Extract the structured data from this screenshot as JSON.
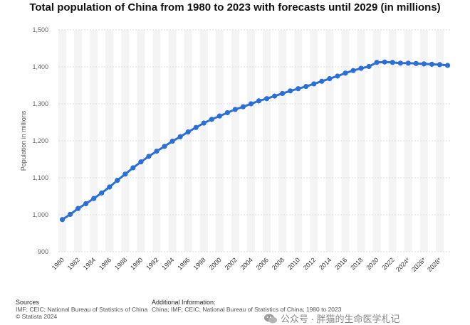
{
  "chart_data": {
    "type": "line",
    "title": "Total population of China from 1980 to 2023 with forecasts until 2029 (in millions)",
    "xlabel": "",
    "ylabel": "Population in millions",
    "ylim": [
      900,
      1500
    ],
    "yticks": [
      "900",
      "1,000",
      "1,100",
      "1,200",
      "1,300",
      "1,400",
      "1,500"
    ],
    "x": [
      "1980",
      "1981",
      "1982",
      "1983",
      "1984",
      "1985",
      "1986",
      "1987",
      "1988",
      "1989",
      "1990",
      "1991",
      "1992",
      "1993",
      "1994",
      "1995",
      "1996",
      "1997",
      "1998",
      "1999",
      "2000",
      "2001",
      "2002",
      "2003",
      "2004",
      "2005",
      "2006",
      "2007",
      "2008",
      "2009",
      "2010",
      "2011",
      "2012",
      "2013",
      "2014",
      "2015",
      "2016",
      "2017",
      "2018",
      "2019",
      "2020",
      "2021",
      "2022",
      "2023",
      "2024*",
      "2025*",
      "2026*",
      "2027*",
      "2028*",
      "2029*"
    ],
    "xtick_labels": [
      "1980",
      "1982",
      "1984",
      "1986",
      "1988",
      "1990",
      "1992",
      "1994",
      "1996",
      "1998",
      "2000",
      "2002",
      "2004",
      "2006",
      "2008",
      "2010",
      "2012",
      "2014",
      "2016",
      "2018",
      "2020",
      "2022",
      "2024*",
      "2026*",
      "2028*"
    ],
    "series": [
      {
        "name": "Total population",
        "color": "#2b6fd6",
        "values": [
          987,
          1001,
          1017,
          1030,
          1044,
          1059,
          1075,
          1093,
          1110,
          1127,
          1143,
          1158,
          1172,
          1185,
          1199,
          1211,
          1224,
          1236,
          1248,
          1258,
          1267,
          1276,
          1285,
          1292,
          1300,
          1308,
          1314,
          1321,
          1328,
          1335,
          1341,
          1347,
          1354,
          1361,
          1368,
          1375,
          1383,
          1390,
          1396,
          1401,
          1412,
          1413,
          1412,
          1410,
          1410,
          1409,
          1408,
          1407,
          1406,
          1404
        ]
      }
    ]
  },
  "sources": {
    "heading": "Sources",
    "line1": "IMF; CEIC; National Bureau of Statistics of China",
    "line2": "© Statista 2024"
  },
  "additional_info": {
    "heading": "Additional Information:",
    "line1": "China; IMF; CEIC; National Bureau of Statistics of China; 1980 to 2023"
  },
  "watermark": {
    "text": "公众号 · 胖猫的生命医学札记"
  }
}
